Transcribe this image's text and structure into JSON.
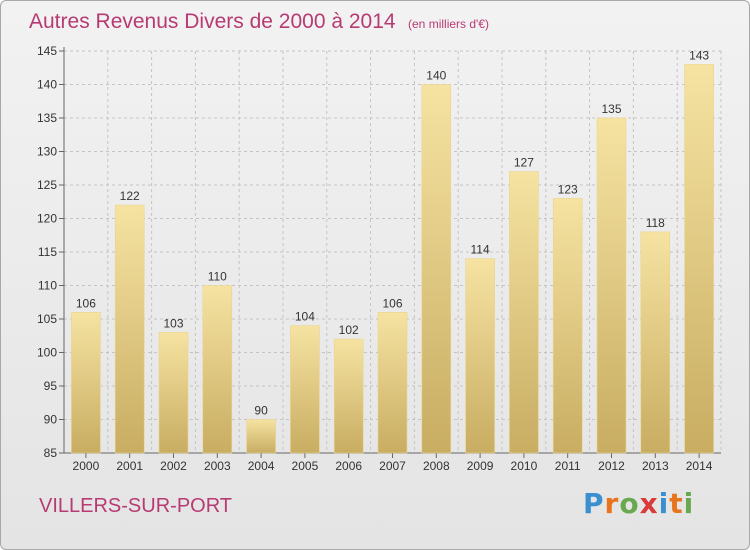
{
  "header": {
    "title": "Autres Revenus Divers de 2000 à 2014",
    "unit": "(en milliers d'€)"
  },
  "commune": "VILLERS-SUR-PORT",
  "logo": {
    "text": "Proxiti",
    "letter_colors": [
      "#3a8fd0",
      "#e8741e",
      "#6aa84f",
      "#d93a3a",
      "#3a8fd0",
      "#e8741e",
      "#6aa84f"
    ]
  },
  "colors": {
    "title": "#b83a73",
    "bar_light": "#f6e3a2",
    "bar_dark": "#c8ad62",
    "grid": "#c4c4c4",
    "background": "#ebebeb"
  },
  "chart_data": {
    "type": "bar",
    "title": "Autres Revenus Divers de 2000 à 2014",
    "subtitle": "(en milliers d'€)",
    "xlabel": "",
    "ylabel": "",
    "categories": [
      "2000",
      "2001",
      "2002",
      "2003",
      "2004",
      "2005",
      "2006",
      "2007",
      "2008",
      "2009",
      "2010",
      "2011",
      "2012",
      "2013",
      "2014"
    ],
    "values": [
      106,
      122,
      103,
      110,
      90,
      104,
      102,
      106,
      140,
      114,
      127,
      123,
      135,
      118,
      143
    ],
    "ylim": [
      85,
      145
    ],
    "yticks": [
      85,
      90,
      95,
      100,
      105,
      110,
      115,
      120,
      125,
      130,
      135,
      140,
      145
    ],
    "grid": true,
    "data_labels": true
  }
}
